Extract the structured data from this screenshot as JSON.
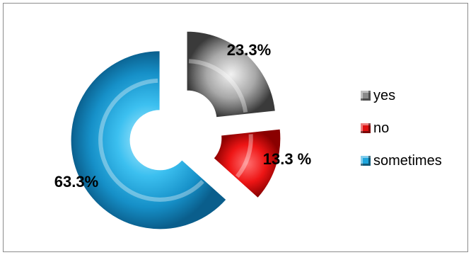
{
  "chart_data": {
    "type": "pie",
    "subtype": "exploded 3D doughnut",
    "categories": [
      "yes",
      "no",
      "sometimes"
    ],
    "values": [
      23.3,
      13.3,
      63.3
    ],
    "data_labels": [
      "23.3%",
      "13.3 %",
      "63.3%"
    ],
    "colors": [
      "#8a8a8a",
      "#e01010",
      "#1ea5dc"
    ],
    "legend_position": "right"
  }
}
